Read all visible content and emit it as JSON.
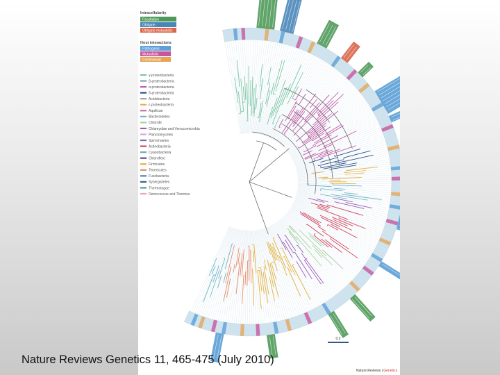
{
  "legend": {
    "intracellularity": {
      "title": "Intracellularity",
      "items": [
        {
          "label": "Facultative",
          "color": "#4f9a5a"
        },
        {
          "label": "Obligate",
          "color": "#4a86b8"
        },
        {
          "label": "Obligate mutualistic",
          "color": "#d9654a"
        }
      ]
    },
    "host_interactions": {
      "title": "Host interactions",
      "items": [
        {
          "label": "Pathogenic",
          "color": "#5b9fd6"
        },
        {
          "label": "Mutualistic",
          "color": "#c9559e"
        },
        {
          "label": "Commensal",
          "color": "#e6a65a"
        }
      ]
    },
    "phyla": [
      {
        "label": "γ-proteobacteria",
        "color": "#7cc6a4"
      },
      {
        "label": "β-proteobacteria",
        "color": "#8c9bb0"
      },
      {
        "label": "α-proteobacteria",
        "color": "#c45aa8"
      },
      {
        "label": "δ-proteobacteria",
        "color": "#2d4f8e"
      },
      {
        "label": "Acidobacteria",
        "color": "#9aa0a6"
      },
      {
        "label": "ε-proteobacteria",
        "color": "#e6b34a"
      },
      {
        "label": "Aquificae",
        "color": "#d86a9c"
      },
      {
        "label": "Bacteroidetes",
        "color": "#6fb7c9"
      },
      {
        "label": "Chlorobi",
        "color": "#a7cfa0"
      },
      {
        "label": "Chlamydiae and Verrucomicrobia",
        "color": "#9a5bb5"
      },
      {
        "label": "Planctomycetes",
        "color": "#c7b0d6"
      },
      {
        "label": "Spirochaetes",
        "color": "#7a6aa8"
      },
      {
        "label": "Actinobacteria",
        "color": "#d2445b"
      },
      {
        "label": "Cyanobacteria",
        "color": "#6aa8c4"
      },
      {
        "label": "Chloroflexi",
        "color": "#5a4e8e"
      },
      {
        "label": "Firmicutes",
        "color": "#e2b13c"
      },
      {
        "label": "Tenericutes",
        "color": "#e88a6a"
      },
      {
        "label": "Fusobacteria",
        "color": "#4a7fb5"
      },
      {
        "label": "Synergistetes",
        "color": "#3f5f8f"
      },
      {
        "label": "Thermotogae",
        "color": "#3fa39a"
      },
      {
        "label": "Deinococcus and Thermus",
        "color": "#e3a7b0"
      }
    ]
  },
  "scale_bar_label": "0.2",
  "journal_mark": {
    "name": "Nature Reviews",
    "accent": "Genetics"
  },
  "caption": "Nature Reviews Genetics 11, 465-475 (July 2010)",
  "colors": {
    "ring": "#cfe3ee",
    "label_facultative": "#3f8f4e",
    "label_pathogenic": "#5b9fd6"
  }
}
